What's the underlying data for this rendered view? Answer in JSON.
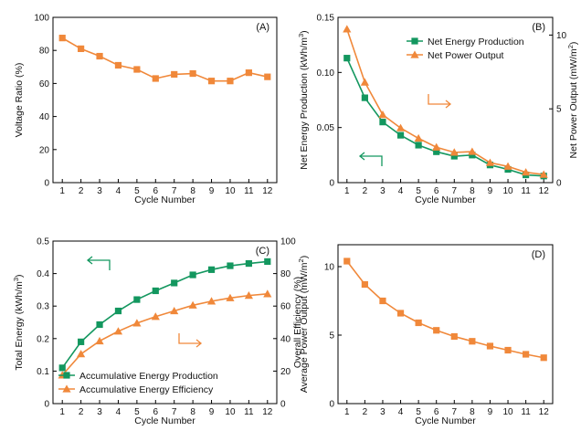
{
  "colors": {
    "green": "#13975f",
    "orange": "#f0883a",
    "axis": "#000000"
  },
  "chart_data": [
    {
      "panel": "(A)",
      "type": "line",
      "xlabel": "Cycle Number",
      "ylabel": "Voltage Ratio (%)",
      "x": [
        1,
        2,
        3,
        4,
        5,
        6,
        7,
        8,
        9,
        10,
        11,
        12
      ],
      "xlim": [
        0.5,
        12.5
      ],
      "ylim": [
        0,
        100
      ],
      "yticks": [
        0,
        20,
        40,
        60,
        80,
        100
      ],
      "series": [
        {
          "values": [
            87.5,
            81,
            76.5,
            71,
            68.5,
            63,
            65.5,
            66,
            61.5,
            61.5,
            66.5,
            64
          ],
          "color": "#f0883a",
          "marker": "square"
        }
      ]
    },
    {
      "panel": "(B)",
      "type": "line",
      "xlabel": "Cycle Number",
      "ylabel": "Net Energy Production (kWh/m³)",
      "y2label": "Net Power Output (mW/m²)",
      "x": [
        1,
        2,
        3,
        4,
        5,
        6,
        7,
        8,
        9,
        10,
        11,
        12
      ],
      "xlim": [
        0.5,
        12.5
      ],
      "ylim": [
        0,
        0.15
      ],
      "yticks": [
        0,
        0.05,
        0.1,
        0.15
      ],
      "ytick_labels": [
        "0",
        "0.05",
        "0.10",
        "0.15"
      ],
      "y2lim": [
        0,
        11.2
      ],
      "y2ticks": [
        0,
        5,
        10
      ],
      "legend_position": "top-right",
      "series": [
        {
          "name": "Net Energy Production",
          "axis": "left",
          "values": [
            0.113,
            0.077,
            0.055,
            0.043,
            0.034,
            0.028,
            0.024,
            0.025,
            0.016,
            0.012,
            0.007,
            0.006
          ],
          "color": "#13975f",
          "marker": "square"
        },
        {
          "name": "Net Power Output",
          "axis": "right",
          "values": [
            10.4,
            6.8,
            4.6,
            3.7,
            3.0,
            2.4,
            2.05,
            2.1,
            1.35,
            1.1,
            0.7,
            0.55
          ],
          "color": "#f0883a",
          "marker": "triangle"
        }
      ]
    },
    {
      "panel": "(C)",
      "type": "line",
      "xlabel": "Cycle Number",
      "ylabel": "Total Energy (kWh/m³)",
      "y2label": "Overall Efficiency (%)",
      "x": [
        1,
        2,
        3,
        4,
        5,
        6,
        7,
        8,
        9,
        10,
        11,
        12
      ],
      "xlim": [
        0.5,
        12.5
      ],
      "ylim": [
        0,
        0.5
      ],
      "yticks": [
        0,
        0.1,
        0.2,
        0.3,
        0.4,
        0.5
      ],
      "y2lim": [
        0,
        100
      ],
      "y2ticks": [
        0,
        20,
        40,
        60,
        80,
        100
      ],
      "legend_position": "bottom-right",
      "series": [
        {
          "name": "Accumulative Energy Production",
          "axis": "left",
          "values": [
            0.11,
            0.19,
            0.243,
            0.285,
            0.32,
            0.347,
            0.371,
            0.396,
            0.412,
            0.424,
            0.431,
            0.437
          ],
          "color": "#13975f",
          "marker": "square"
        },
        {
          "name": "Accumulative Energy Efficiency",
          "axis": "right",
          "values": [
            17.5,
            30.5,
            38.5,
            44.5,
            49.5,
            53.5,
            57,
            60.5,
            63,
            65,
            66.5,
            67.5
          ],
          "color": "#f0883a",
          "marker": "triangle"
        }
      ]
    },
    {
      "panel": "(D)",
      "type": "line",
      "xlabel": "Cycle Number",
      "ylabel": "Average Power Output (mW/m²)",
      "x": [
        1,
        2,
        3,
        4,
        5,
        6,
        7,
        8,
        9,
        10,
        11,
        12
      ],
      "xlim": [
        0.5,
        12.5
      ],
      "ylim": [
        0,
        11.6
      ],
      "yticks": [
        0,
        5,
        10
      ],
      "series": [
        {
          "values": [
            10.4,
            8.7,
            7.5,
            6.6,
            5.9,
            5.35,
            4.9,
            4.55,
            4.2,
            3.9,
            3.6,
            3.35
          ],
          "color": "#f0883a",
          "marker": "square"
        }
      ]
    }
  ]
}
